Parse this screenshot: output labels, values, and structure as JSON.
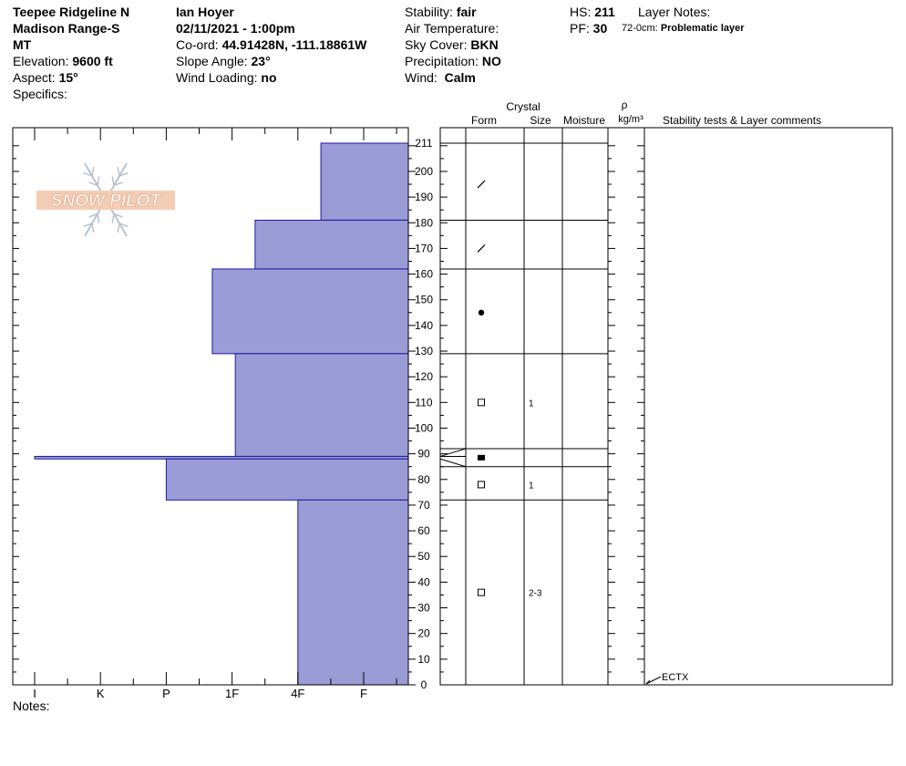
{
  "header": {
    "location_line1": "Teepee Ridgeline N",
    "location_line2": "Madison Range-S",
    "location_line3": "MT",
    "elevation_label": "Elevation:",
    "elevation_value": "9600 ft",
    "aspect_label": "Aspect:",
    "aspect_value": "15°",
    "specifics_label": "Specifics:",
    "observer": "Ian Hoyer",
    "datetime": "02/11/2021 - 1:00pm",
    "coord_label": "Co-ord:",
    "coord_value": "44.91428N, -111.18861W",
    "slope_label": "Slope Angle:",
    "slope_value": "23°",
    "wind_loading_label": "Wind Loading:",
    "wind_loading_value": "no",
    "stability_label": "Stability:",
    "stability_value": "fair",
    "air_temp_label": "Air Temperature:",
    "sky_label": "Sky Cover:",
    "sky_value": "BKN",
    "precip_label": "Precipitation:",
    "precip_value": "NO",
    "wind_label": "Wind:",
    "wind_value": "Calm",
    "hs_label": "HS:",
    "hs_value": "211",
    "pf_label": "PF:",
    "pf_value": "30",
    "layer_notes_label": "Layer Notes:",
    "layer_note_range": "72-0cm:",
    "layer_note_text": "Problematic layer"
  },
  "notes_label": "Notes:",
  "logo_text": "SNOW PILOT",
  "columns": {
    "crystal": "Crystal",
    "form": "Form",
    "size": "Size",
    "moisture": "Moisture",
    "rho": "ρ",
    "density_unit": "kg/m³",
    "stability_tests": "Stability tests & Layer comments"
  },
  "chart_data": {
    "type": "bar",
    "title": "",
    "xlabel": "",
    "ylabel": "",
    "hardness_categories": [
      "I",
      "K",
      "P",
      "1F",
      "4F",
      "F"
    ],
    "ylim": [
      0,
      211
    ],
    "y_ticks": [
      0,
      10,
      20,
      30,
      40,
      50,
      60,
      70,
      80,
      90,
      100,
      110,
      120,
      130,
      140,
      150,
      160,
      170,
      180,
      190,
      200,
      211
    ],
    "layers": [
      {
        "top": 211,
        "bottom": 181,
        "hardness": 4.35
      },
      {
        "top": 181,
        "bottom": 162,
        "hardness": 3.35
      },
      {
        "top": 162,
        "bottom": 129,
        "hardness": 2.7
      },
      {
        "top": 129,
        "bottom": 89,
        "hardness": 3.05
      },
      {
        "top": 89,
        "bottom": 88,
        "hardness": 0.0
      },
      {
        "top": 88,
        "bottom": 72,
        "hardness": 2.0
      },
      {
        "top": 72,
        "bottom": 0,
        "hardness": 4.0
      }
    ],
    "layer_boundaries": [
      211,
      181,
      162,
      129,
      92,
      85,
      72
    ],
    "crystals": [
      {
        "height": 195,
        "form": "decomposing",
        "size": ""
      },
      {
        "height": 170,
        "form": "decomposing",
        "size": ""
      },
      {
        "height": 145,
        "form": "rounded",
        "size": ""
      },
      {
        "height": 110,
        "form": "faceted",
        "size": "1"
      },
      {
        "height": 88.5,
        "form": "faceted-rounded",
        "size": ""
      },
      {
        "height": 78,
        "form": "faceted",
        "size": "1"
      },
      {
        "height": 36,
        "form": "faceted",
        "size": "2-3"
      }
    ],
    "stability_tests": [
      {
        "height": 0,
        "result": "ECTX"
      }
    ],
    "colors": {
      "bar_fill": "#9b9bd6",
      "bar_stroke": "#1a1aa0"
    }
  }
}
